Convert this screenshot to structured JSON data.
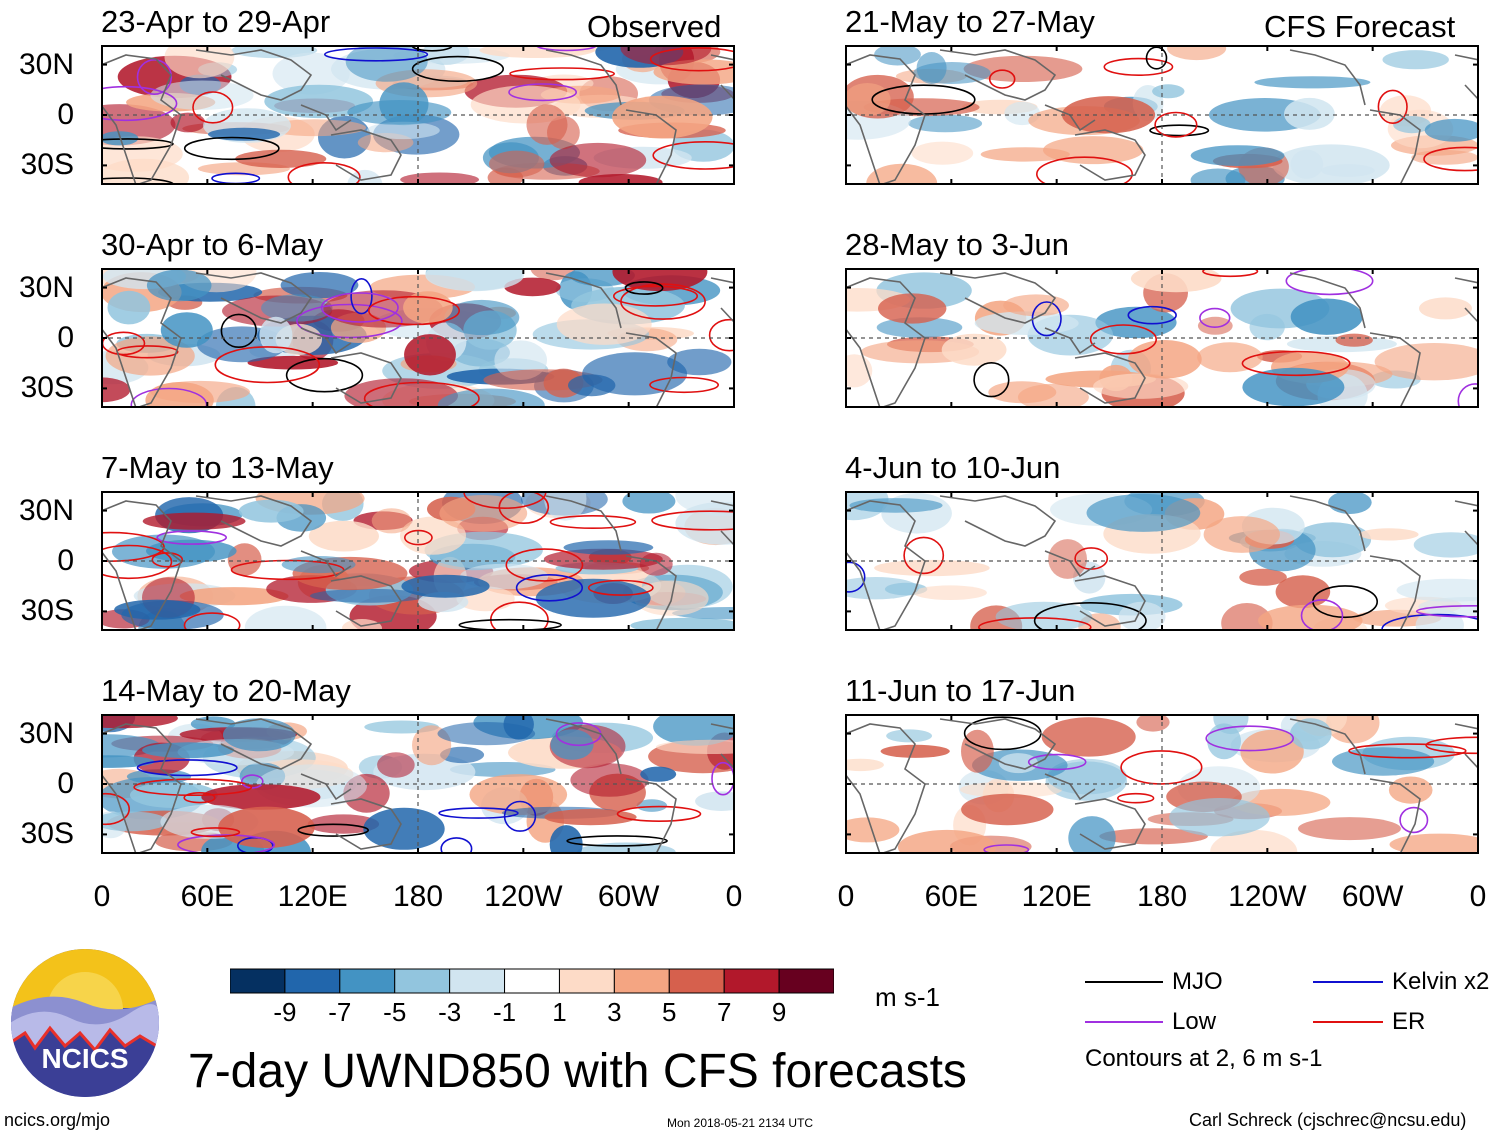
{
  "figure_title": "7-day UWND850 with CFS forecasts",
  "logo": {
    "text": "NCICS"
  },
  "url": "ncics.org/mjo",
  "timestamp": "Mon 2018-05-21 2134 UTC",
  "author": "Carl Schreck (cjschrec@ncsu.edu)",
  "columns": {
    "left": "Observed",
    "right": "CFS Forecast"
  },
  "lat_labels": [
    "30N",
    "0",
    "30S"
  ],
  "lon_labels": [
    "0",
    "60E",
    "120E",
    "180",
    "120W",
    "60W",
    "0"
  ],
  "colorbar": {
    "unit": "m s-1",
    "colors": [
      "#053061",
      "#2166ac",
      "#4393c3",
      "#92c5de",
      "#d1e5f0",
      "#ffffff",
      "#fddbc7",
      "#f4a582",
      "#d6604d",
      "#b2182b",
      "#67001f"
    ],
    "tick_labels": [
      "-9",
      "-7",
      "-5",
      "-3",
      "-1",
      "1",
      "3",
      "5",
      "7",
      "9"
    ]
  },
  "legend": {
    "items": [
      {
        "label": "MJO",
        "color": "#000000"
      },
      {
        "label": "Kelvin x2",
        "color": "#1010d0"
      },
      {
        "label": "Low",
        "color": "#a030e0"
      },
      {
        "label": "ER",
        "color": "#e01010"
      }
    ],
    "note": "Contours at 2, 6 m s-1"
  },
  "chart_data": {
    "type": "heatmap",
    "title": "7-day UWND850 with CFS forecasts",
    "variable": "850-hPa zonal wind anomaly",
    "unit": "m s-1",
    "x_axis": {
      "ticks": [
        "0",
        "60E",
        "120E",
        "180",
        "120W",
        "60W",
        "0"
      ]
    },
    "y_axis": {
      "ticks": [
        "30N",
        "0",
        "30S"
      ]
    },
    "contours": [
      "MJO",
      "Kelvin x2",
      "Low",
      "ER"
    ],
    "contour_levels": "Contours at 2, 6 m s-1",
    "panels": [
      {
        "period": "23-Apr to 29-Apr",
        "source": "Observed"
      },
      {
        "period": "30-Apr to 6-May",
        "source": "Observed"
      },
      {
        "period": "7-May to 13-May",
        "source": "Observed"
      },
      {
        "period": "14-May to 20-May",
        "source": "Observed"
      },
      {
        "period": "21-May to 27-May",
        "source": "CFS Forecast"
      },
      {
        "period": "28-May to 3-Jun",
        "source": "CFS Forecast"
      },
      {
        "period": "4-Jun to 10-Jun",
        "source": "CFS Forecast"
      },
      {
        "period": "11-Jun to 17-Jun",
        "source": "CFS Forecast"
      }
    ]
  }
}
